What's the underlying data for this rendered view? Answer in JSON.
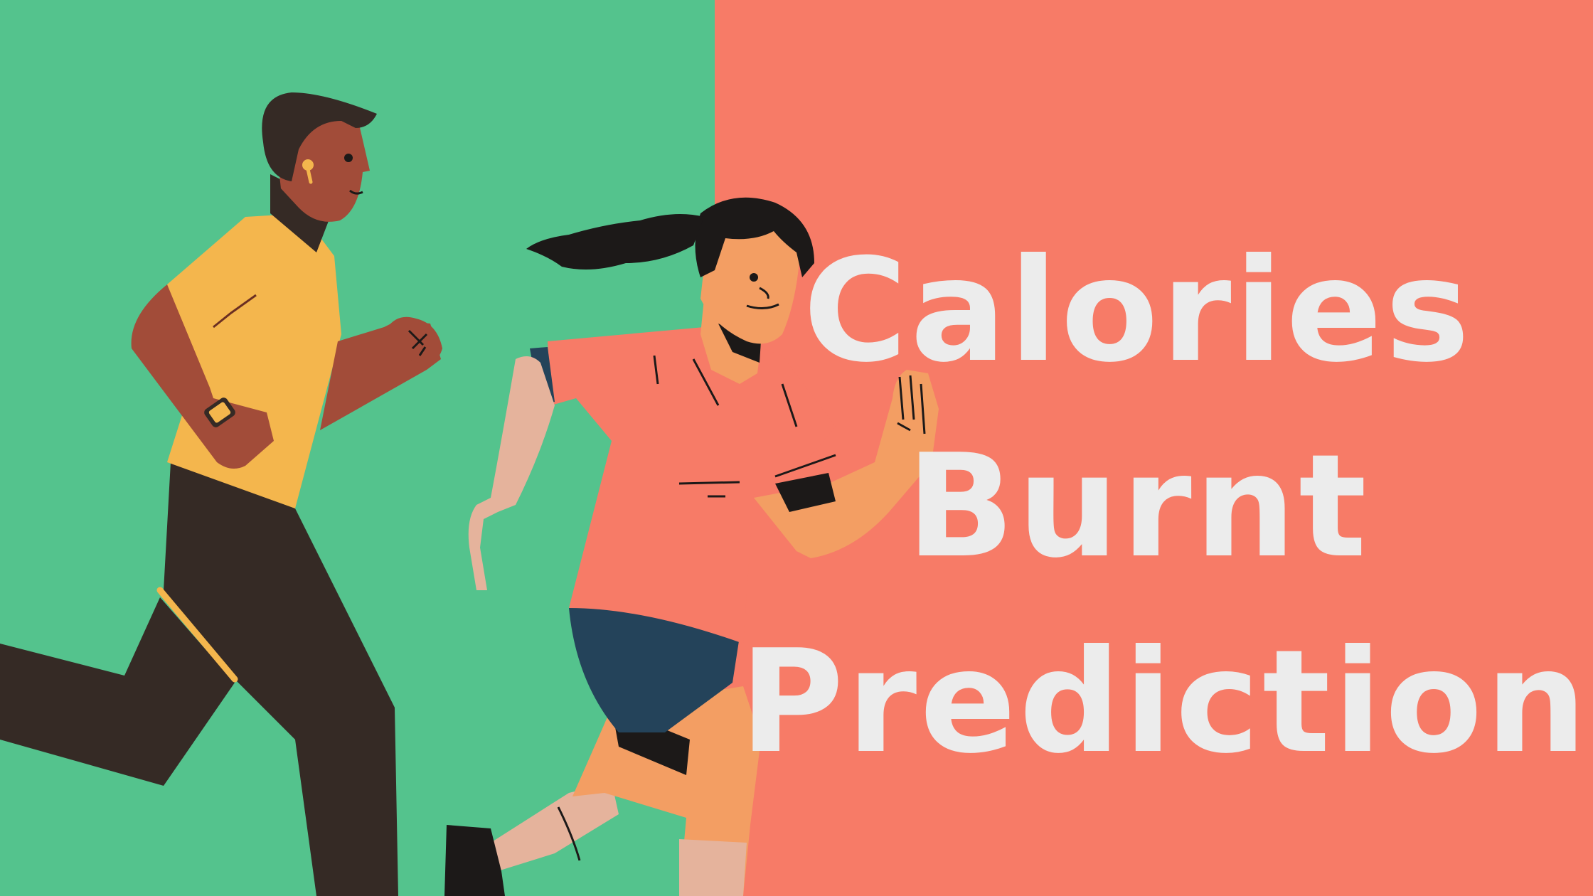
{
  "title_lines": [
    "Calories",
    "Burnt",
    "Prediction"
  ],
  "colors": {
    "left_background": "#54c38d",
    "right_background": "#f77b67",
    "title_text": "#ececec",
    "skin_dark": "#a24c39",
    "shirt_yellow": "#f4b64d",
    "pants_dark": "#352a25",
    "hair_black": "#1c1918",
    "shirt_coral": "#f77b67",
    "skin_light": "#f39e63",
    "shorts_navy": "#24435a",
    "sleeve_pink": "#e5b39c"
  },
  "illustration": {
    "figures": [
      "man-running",
      "woman-running"
    ],
    "accessories": [
      "smartwatch-icon",
      "earbud-icon",
      "armband-icon"
    ]
  }
}
